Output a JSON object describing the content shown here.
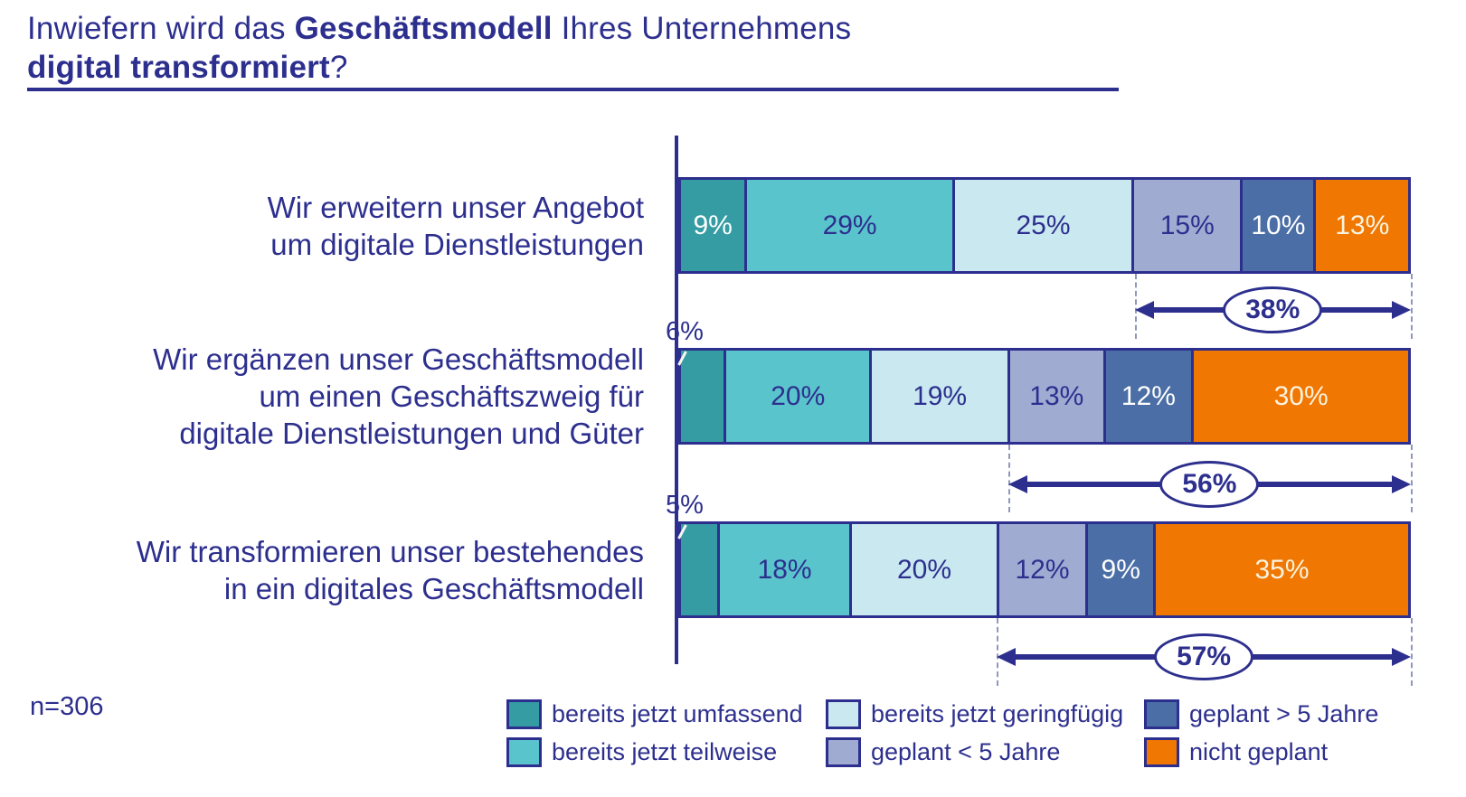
{
  "title": {
    "line1_normal1": "Inwiefern wird das ",
    "line1_bold": "Geschäftsmodell",
    "line1_normal2": " Ihres Unternehmens",
    "line2_bold": "digital transformiert",
    "line2_normal": "?"
  },
  "sample_note": "n=306",
  "colors": {
    "navy": "#2D2F8E",
    "dash_gray": "#9097BB",
    "background": "#FFFFFF"
  },
  "chart_data": {
    "type": "bar",
    "stacked": true,
    "orientation": "horizontal",
    "value_unit": "%",
    "axis_range": [
      0,
      100
    ],
    "grid": false,
    "legend_position": "bottom",
    "series_names": [
      "bereits jetzt umfassend",
      "bereits jetzt teilweise",
      "bereits jetzt geringfügig",
      "geplant < 5 Jahre",
      "geplant > 5 Jahre",
      "nicht geplant"
    ],
    "series_colors": [
      "#359CA3",
      "#5AC4CC",
      "#C9E8EF",
      "#A0ABD2",
      "#4A6EA5",
      "#F07702"
    ],
    "series_label_colors": [
      "#FFFFFF",
      "#2D2F8E",
      "#2D2F8E",
      "#2D2F8E",
      "#FFFFFF",
      "#FBF3DF"
    ],
    "rows": [
      {
        "category": "Wir erweitern unser Angebot\num digitale Dienstleistungen",
        "values": [
          9,
          29,
          25,
          15,
          10,
          13
        ],
        "outside_label": "",
        "annotation": {
          "label": "38%",
          "from_series": 3
        }
      },
      {
        "category": "Wir ergänzen unser Geschäftsmodell\num einen Geschäftszweig für\ndigitale Dienstleistungen und Güter",
        "values": [
          6,
          20,
          19,
          13,
          12,
          30
        ],
        "outside_label": "6%",
        "annotation": {
          "label": "56%",
          "from_series": 3
        }
      },
      {
        "category": "Wir transformieren unser bestehendes\nin ein digitales Geschäftsmodell",
        "values": [
          5,
          18,
          20,
          12,
          9,
          35
        ],
        "outside_label": "5%",
        "annotation": {
          "label": "57%",
          "from_series": 3
        }
      }
    ]
  }
}
